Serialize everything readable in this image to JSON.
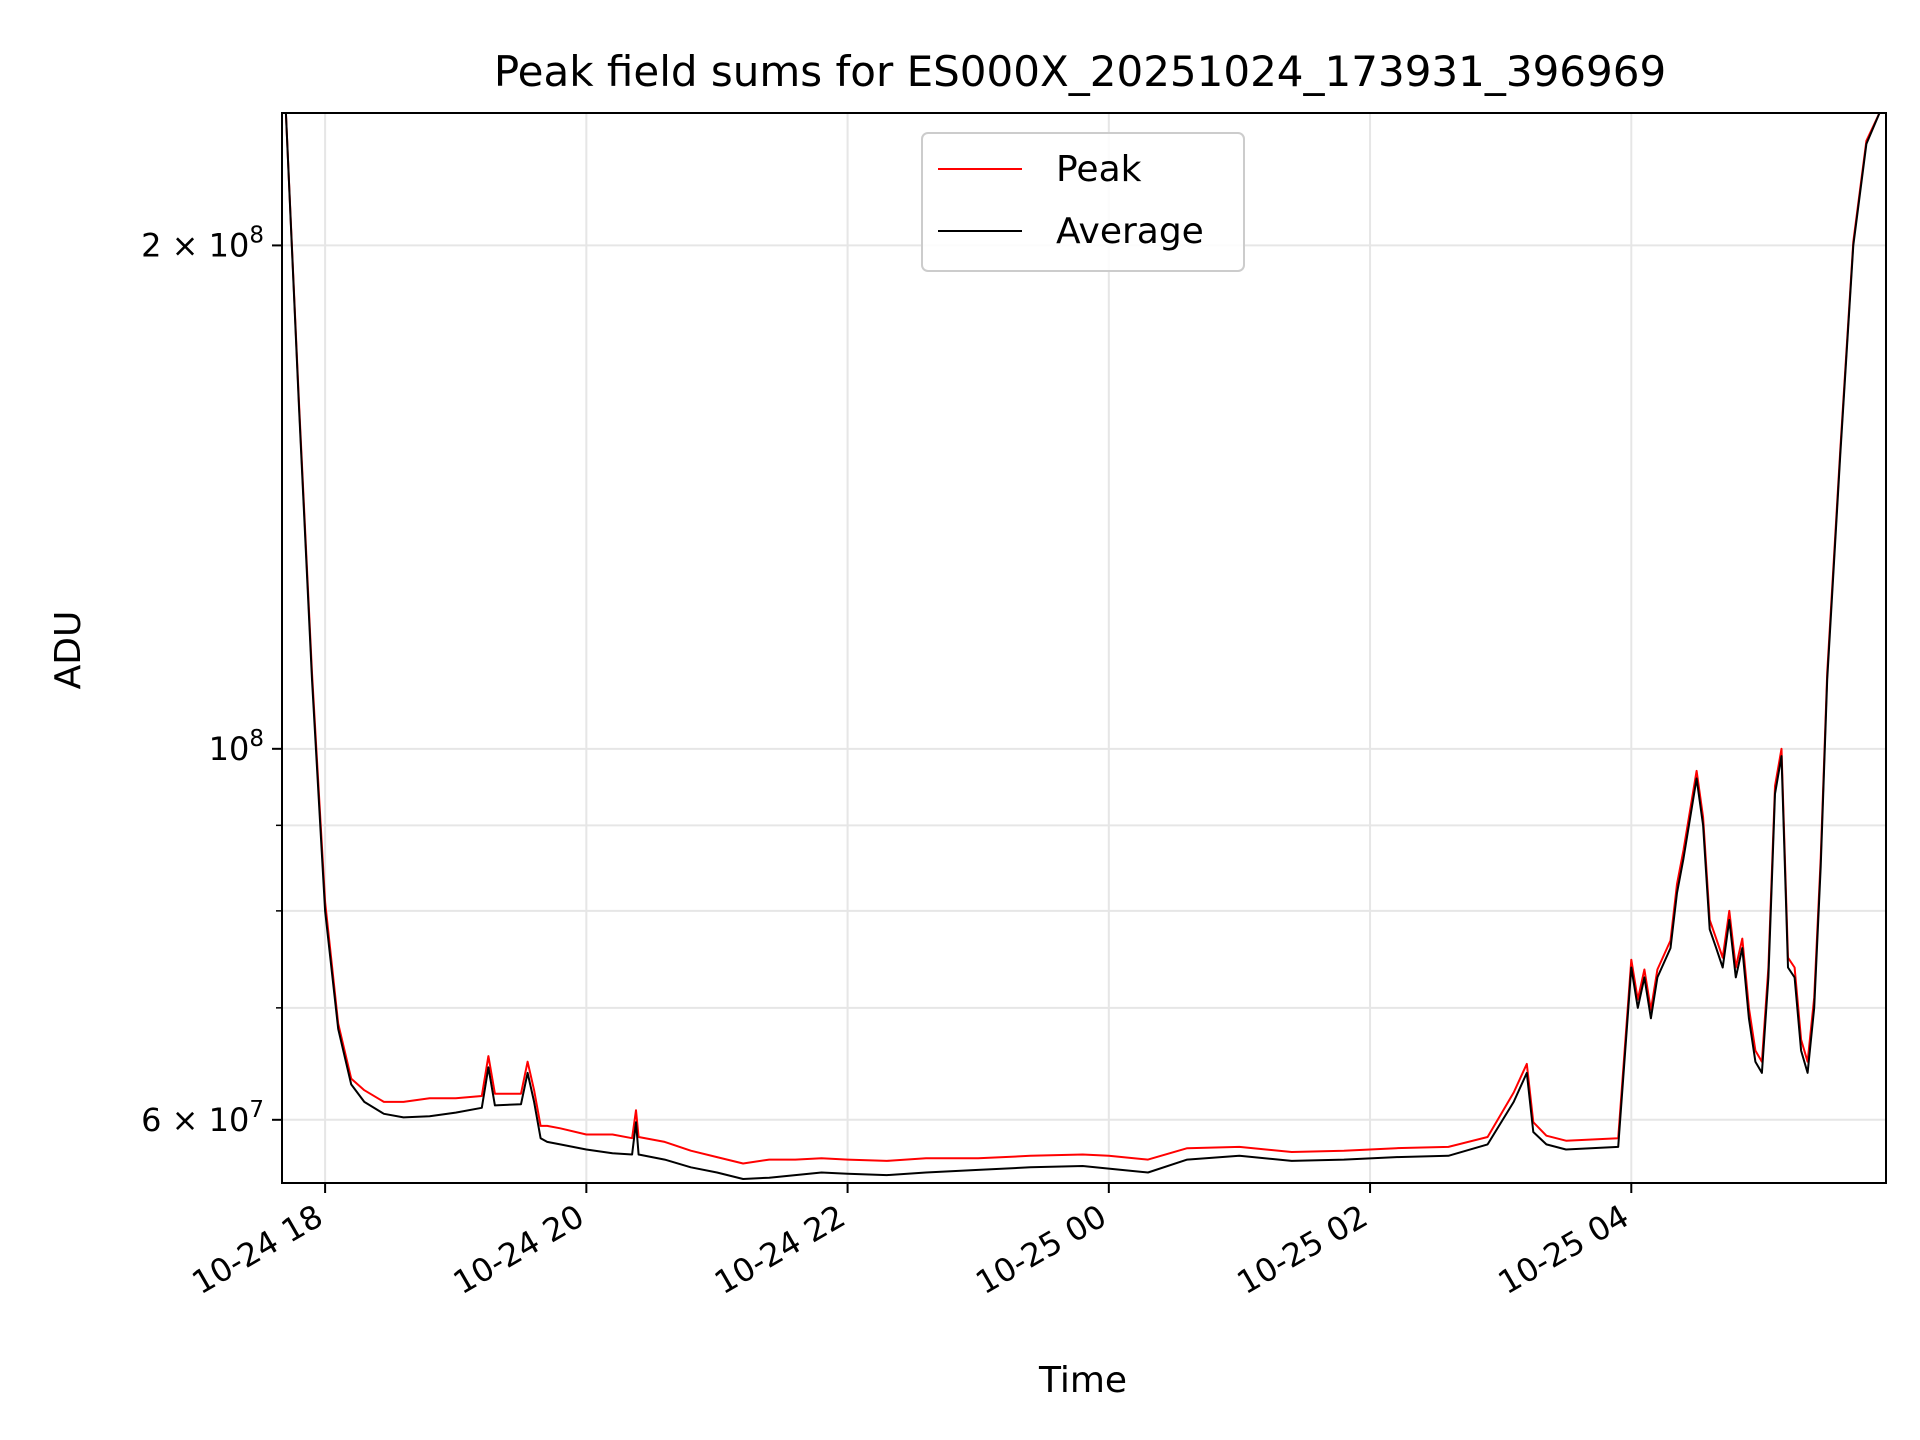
{
  "chart_data": {
    "type": "line",
    "title": "Peak field sums for ES000X_20251024_173931_396969",
    "xlabel": "Time",
    "ylabel": "ADU",
    "yscale": "log",
    "ylim": [
      55000000,
      240000000
    ],
    "xlim_hours": [
      17.67,
      5.95
    ],
    "grid": true,
    "legend_position": "top-center",
    "x_ticks": [
      {
        "hour": 18,
        "label": "10-24 18"
      },
      {
        "hour": 20,
        "label": "10-24 20"
      },
      {
        "hour": 22,
        "label": "10-24 22"
      },
      {
        "hour": 24,
        "label": "10-25 00"
      },
      {
        "hour": 26,
        "label": "10-25 02"
      },
      {
        "hour": 28,
        "label": "10-25 04"
      }
    ],
    "y_ticks": [
      {
        "value": 200000000,
        "label": "2 × 10^8"
      },
      {
        "value": 100000000,
        "label": "10^8"
      },
      {
        "value": 60000000,
        "label": "6 × 10^7"
      }
    ],
    "y_minor_ticks": [
      70000000,
      80000000,
      90000000
    ],
    "series": [
      {
        "name": "Average",
        "color": "#000000",
        "x_hours": [
          17.7,
          17.8,
          17.9,
          18.0,
          18.1,
          18.2,
          18.3,
          18.45,
          18.6,
          18.8,
          19.0,
          19.2,
          19.25,
          19.3,
          19.5,
          19.55,
          19.6,
          19.65,
          19.7,
          19.8,
          20.0,
          20.2,
          20.35,
          20.38,
          20.4,
          20.6,
          20.8,
          21.0,
          21.2,
          21.4,
          21.6,
          21.8,
          22.0,
          22.3,
          22.6,
          23.0,
          23.4,
          23.8,
          24.0,
          24.3,
          24.6,
          25.0,
          25.4,
          25.8,
          26.2,
          26.6,
          26.9,
          27.1,
          27.2,
          27.25,
          27.35,
          27.5,
          27.9,
          28.0,
          28.05,
          28.1,
          28.15,
          28.2,
          28.3,
          28.35,
          28.4,
          28.5,
          28.55,
          28.6,
          28.65,
          28.7,
          28.75,
          28.8,
          28.85,
          28.9,
          28.95,
          29.0,
          29.05,
          29.1,
          29.15,
          29.2,
          29.25,
          29.3,
          29.35,
          29.4,
          29.45,
          29.5,
          29.6,
          29.7,
          29.8,
          29.9,
          29.95
        ],
        "values": [
          240000000,
          160000000,
          110000000,
          80000000,
          68000000,
          63000000,
          61500000,
          60500000,
          60200000,
          60300000,
          60600000,
          61000000,
          64500000,
          61200000,
          61300000,
          64000000,
          61500000,
          58500000,
          58200000,
          58000000,
          57600000,
          57300000,
          57200000,
          59800000,
          57200000,
          56800000,
          56200000,
          55800000,
          55300000,
          55400000,
          55600000,
          55800000,
          55700000,
          55600000,
          55800000,
          56000000,
          56200000,
          56300000,
          56100000,
          55800000,
          56800000,
          57100000,
          56700000,
          56800000,
          57000000,
          57100000,
          58000000,
          61500000,
          64000000,
          59000000,
          58000000,
          57600000,
          57800000,
          74000000,
          70000000,
          73000000,
          69000000,
          73000000,
          76000000,
          82000000,
          86000000,
          96000000,
          90000000,
          78000000,
          76000000,
          74000000,
          79000000,
          73000000,
          76000000,
          69000000,
          65000000,
          64000000,
          73000000,
          94000000,
          99000000,
          74000000,
          73000000,
          66000000,
          64000000,
          70000000,
          85000000,
          110000000,
          150000000,
          200000000,
          230000000,
          240000000,
          240000000
        ]
      },
      {
        "name": "Peak",
        "color": "#ff0000",
        "x_hours": [
          17.7,
          17.8,
          17.9,
          18.0,
          18.1,
          18.2,
          18.3,
          18.45,
          18.6,
          18.8,
          19.0,
          19.2,
          19.25,
          19.3,
          19.5,
          19.55,
          19.6,
          19.65,
          19.7,
          19.8,
          20.0,
          20.2,
          20.35,
          20.38,
          20.4,
          20.6,
          20.8,
          21.0,
          21.2,
          21.4,
          21.6,
          21.8,
          22.0,
          22.3,
          22.6,
          23.0,
          23.4,
          23.8,
          24.0,
          24.3,
          24.6,
          25.0,
          25.4,
          25.8,
          26.2,
          26.6,
          26.9,
          27.1,
          27.2,
          27.25,
          27.35,
          27.5,
          27.9,
          28.0,
          28.05,
          28.1,
          28.15,
          28.2,
          28.3,
          28.35,
          28.4,
          28.5,
          28.55,
          28.6,
          28.65,
          28.7,
          28.75,
          28.8,
          28.85,
          28.9,
          28.95,
          29.0,
          29.05,
          29.1,
          29.15,
          29.2,
          29.25,
          29.3,
          29.35,
          29.4,
          29.45,
          29.5,
          29.6,
          29.7,
          29.8,
          29.9,
          29.95
        ],
        "values": [
          240000000,
          161000000,
          111000000,
          81000000,
          68500000,
          63500000,
          62500000,
          61500000,
          61500000,
          61800000,
          61800000,
          62000000,
          65500000,
          62200000,
          62200000,
          65000000,
          62500000,
          59500000,
          59500000,
          59300000,
          58800000,
          58800000,
          58500000,
          60800000,
          58600000,
          58200000,
          57500000,
          57000000,
          56500000,
          56800000,
          56800000,
          56900000,
          56800000,
          56700000,
          56900000,
          56900000,
          57100000,
          57200000,
          57100000,
          56800000,
          57700000,
          57800000,
          57400000,
          57500000,
          57700000,
          57800000,
          58600000,
          62300000,
          64800000,
          59800000,
          58700000,
          58300000,
          58500000,
          74800000,
          70800000,
          73800000,
          69800000,
          73800000,
          76800000,
          83000000,
          87000000,
          97000000,
          91000000,
          79000000,
          77000000,
          75000000,
          80000000,
          74000000,
          77000000,
          70000000,
          66000000,
          65000000,
          74000000,
          95000000,
          100000000,
          75000000,
          74000000,
          67000000,
          65000000,
          71000000,
          86000000,
          111000000,
          151000000,
          201000000,
          231000000,
          240000000,
          240000000
        ]
      }
    ],
    "legend_order": [
      "Peak",
      "Average"
    ]
  }
}
